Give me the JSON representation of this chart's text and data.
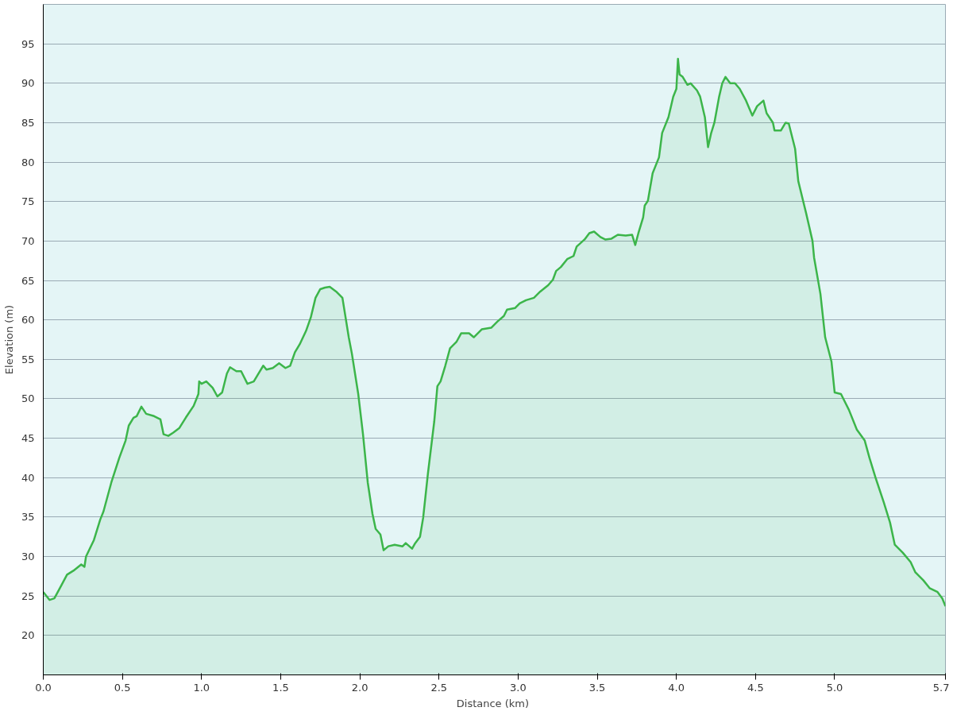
{
  "chart_data": {
    "type": "area",
    "xlabel": "Distance  (km)",
    "ylabel": "Elevation (m)",
    "xlim": [
      0,
      5.7
    ],
    "ylim": [
      15,
      100
    ],
    "xticks": [
      {
        "value": 0,
        "label": "0.0"
      },
      0.5,
      {
        "value": 1,
        "label": "1.0"
      },
      1.5,
      {
        "value": 2,
        "label": "2.0"
      },
      2.5,
      {
        "value": 3,
        "label": "3.0"
      },
      3.5,
      {
        "value": 4,
        "label": "4.0"
      },
      4.5,
      {
        "value": 5,
        "label": "5.0"
      },
      5.7
    ],
    "yticks": [
      20,
      25,
      30,
      35,
      40,
      45,
      50,
      55,
      60,
      65,
      70,
      75,
      80,
      85,
      90,
      95
    ],
    "grid": "y",
    "marker": "none",
    "line_style": "solid",
    "x": [
      0,
      0.04,
      0.07,
      0.11,
      0.15,
      0.19,
      0.24,
      0.26,
      0.27,
      0.32,
      0.36,
      0.38,
      0.43,
      0.48,
      0.52,
      0.54,
      0.57,
      0.59,
      0.62,
      0.65,
      0.7,
      0.74,
      0.76,
      0.79,
      0.82,
      0.86,
      0.9,
      0.95,
      0.98,
      0.985,
      1.0,
      1.03,
      1.07,
      1.1,
      1.13,
      1.16,
      1.18,
      1.22,
      1.25,
      1.29,
      1.33,
      1.36,
      1.39,
      1.41,
      1.45,
      1.49,
      1.53,
      1.56,
      1.59,
      1.62,
      1.66,
      1.69,
      1.72,
      1.75,
      1.78,
      1.81,
      1.85,
      1.89,
      1.93,
      1.95,
      1.99,
      2.02,
      2.05,
      2.08,
      2.1,
      2.13,
      2.15,
      2.18,
      2.22,
      2.27,
      2.29,
      2.33,
      2.35,
      2.38,
      2.4,
      2.43,
      2.47,
      2.49,
      2.51,
      2.54,
      2.57,
      2.61,
      2.64,
      2.69,
      2.72,
      2.77,
      2.83,
      2.87,
      2.91,
      2.93,
      2.98,
      3.01,
      3.05,
      3.1,
      3.14,
      3.19,
      3.22,
      3.24,
      3.27,
      3.31,
      3.35,
      3.37,
      3.42,
      3.45,
      3.48,
      3.52,
      3.55,
      3.59,
      3.63,
      3.68,
      3.72,
      3.74,
      3.76,
      3.79,
      3.8,
      3.82,
      3.85,
      3.89,
      3.91,
      3.95,
      3.98,
      4.0,
      4.01,
      4.02,
      4.04,
      4.07,
      4.09,
      4.13,
      4.15,
      4.18,
      4.2,
      4.22,
      4.24,
      4.27,
      4.29,
      4.31,
      4.34,
      4.37,
      4.4,
      4.44,
      4.48,
      4.51,
      4.55,
      4.57,
      4.61,
      4.62,
      4.66,
      4.69,
      4.71,
      4.75,
      4.77,
      4.82,
      4.86,
      4.87,
      4.91,
      4.94,
      4.98,
      5.0,
      5.04,
      5.09,
      5.14,
      5.19,
      5.22,
      5.26,
      5.31,
      5.35,
      5.38,
      5.43,
      5.48,
      5.51,
      5.56,
      5.6,
      5.65,
      5.68,
      5.7
    ],
    "series": [
      {
        "color": "#3cb54a",
        "values": [
          25.5,
          24.5,
          24.7,
          26.2,
          27.7,
          28.2,
          29,
          28.7,
          30,
          32.1,
          34.7,
          35.7,
          39.4,
          42.5,
          44.7,
          46.6,
          47.6,
          47.8,
          49,
          48.1,
          47.8,
          47.4,
          45.5,
          45.3,
          45.7,
          46.3,
          47.6,
          49.1,
          50.6,
          52.2,
          51.9,
          52.2,
          51.4,
          50.3,
          50.8,
          53.2,
          54,
          53.5,
          53.5,
          51.9,
          52.2,
          53.2,
          54.2,
          53.7,
          53.9,
          54.5,
          53.9,
          54.2,
          55.9,
          56.9,
          58.6,
          60.3,
          62.8,
          63.9,
          64.1,
          64.2,
          63.6,
          62.8,
          57.8,
          55.7,
          50.6,
          45.5,
          39.4,
          35.4,
          33.5,
          32.8,
          30.8,
          31.3,
          31.5,
          31.3,
          31.7,
          31,
          31.7,
          32.5,
          34.9,
          40.5,
          47.1,
          51.6,
          52.2,
          54.2,
          56.4,
          57.2,
          58.3,
          58.3,
          57.8,
          58.8,
          59,
          59.8,
          60.5,
          61.3,
          61.5,
          62.1,
          62.5,
          62.8,
          63.6,
          64.4,
          65.1,
          66.2,
          66.7,
          67.7,
          68.1,
          69.3,
          70.2,
          71,
          71.2,
          70.5,
          70.2,
          70.3,
          70.8,
          70.7,
          70.8,
          69.5,
          71,
          73,
          74.5,
          75.1,
          78.6,
          80.6,
          83.7,
          85.7,
          88.3,
          89.3,
          93.1,
          91.1,
          90.8,
          89.8,
          90,
          89.1,
          88.3,
          85.7,
          81.9,
          83.7,
          85,
          88.3,
          90,
          90.8,
          90,
          90,
          89.3,
          87.8,
          85.9,
          87.1,
          87.8,
          86.2,
          85,
          84,
          84,
          85,
          84.9,
          81.7,
          77.6,
          73.5,
          70,
          67.9,
          63.3,
          57.8,
          54.7,
          50.8,
          50.6,
          48.6,
          46.1,
          44.7,
          42.5,
          39.9,
          36.9,
          34.3,
          31.5,
          30.5,
          29.3,
          28,
          27,
          26,
          25.5,
          24.7,
          23.7
        ]
      }
    ]
  }
}
